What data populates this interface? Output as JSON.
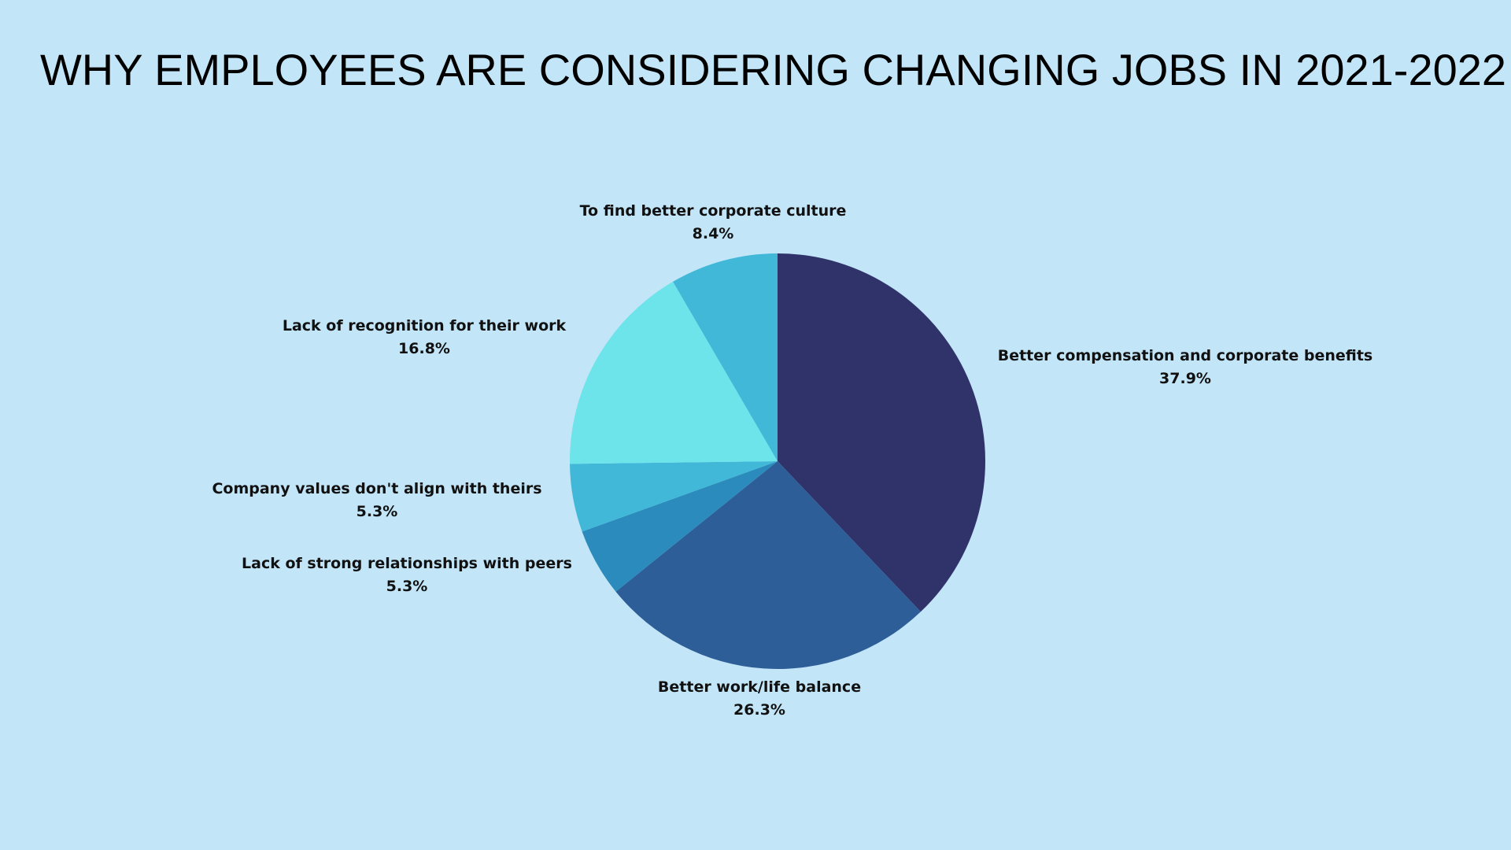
{
  "chart_data": {
    "type": "pie",
    "title": "WHY EMPLOYEES ARE CONSIDERING CHANGING JOBS IN 2021-2022",
    "start_angle_deg": 0,
    "direction": "clockwise",
    "slices": [
      {
        "label": "Better compensation and corporate benefits",
        "value": 37.9,
        "display": "37.9%",
        "color": "#30336a"
      },
      {
        "label": "Better work/life balance",
        "value": 26.3,
        "display": "26.3%",
        "color": "#2d5e97"
      },
      {
        "label": "Lack of strong relationships with peers",
        "value": 5.3,
        "display": "5.3%",
        "color": "#2b8bbc"
      },
      {
        "label": "Company values don't align with theirs",
        "value": 5.3,
        "display": "5.3%",
        "color": "#42b8d8"
      },
      {
        "label": "Lack of recognition for their work",
        "value": 16.8,
        "display": "16.8%",
        "color": "#6de4e9"
      },
      {
        "label": "To find better corporate culture",
        "value": 8.4,
        "display": "8.4%",
        "color": "#42b8d8"
      }
    ],
    "legend": "none",
    "labels": "outside"
  },
  "colors": {
    "background": "#c3e5f8",
    "text": "#111111"
  }
}
